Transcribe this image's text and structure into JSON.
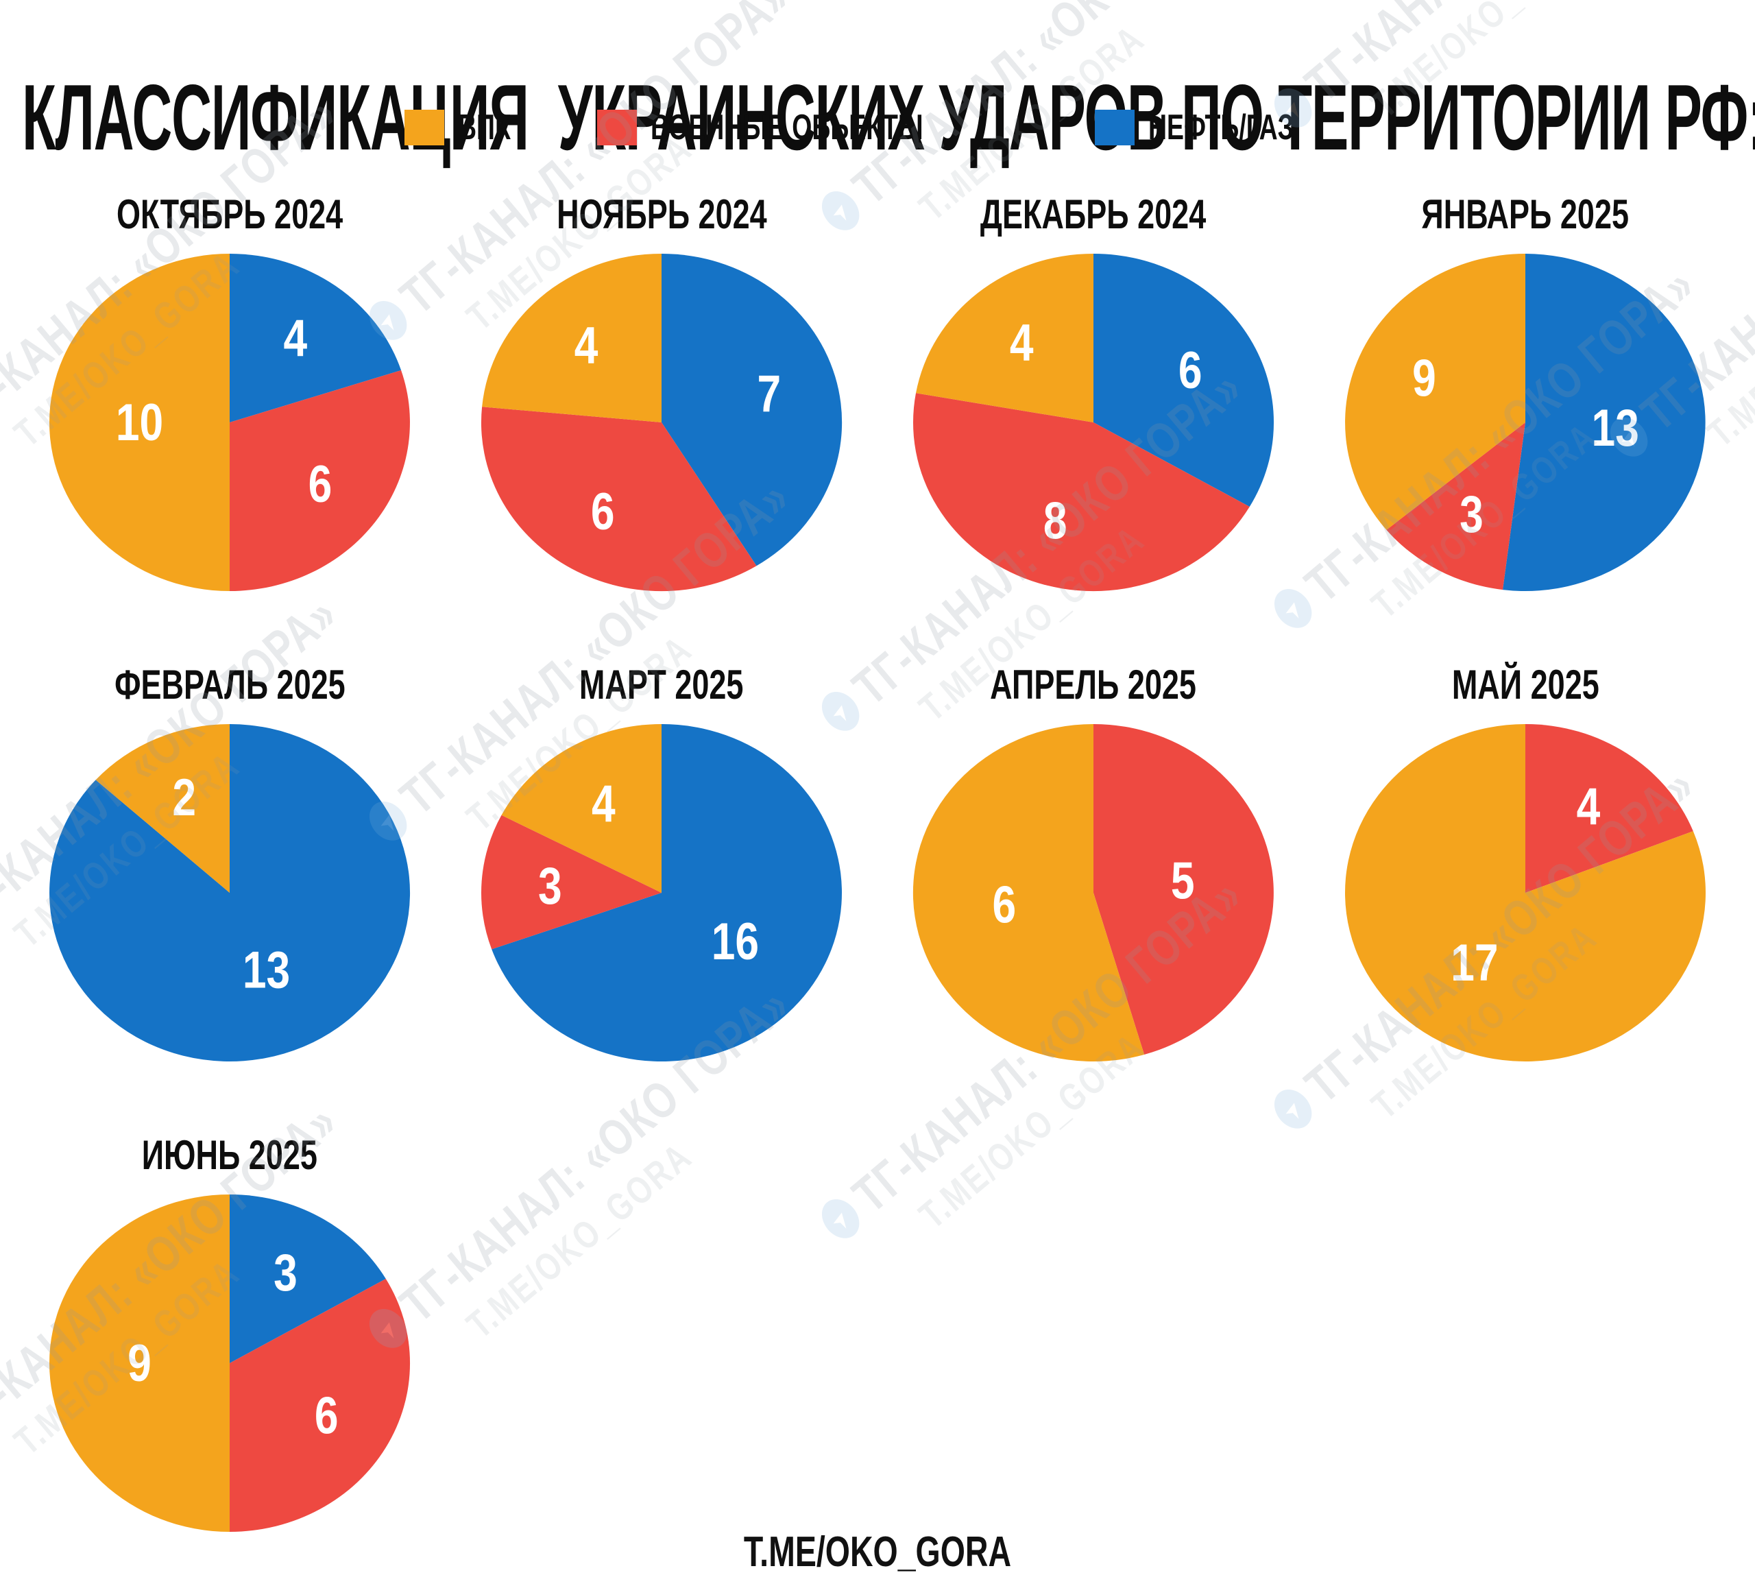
{
  "title": "КЛАССИФИКАЦИЯ  УКРАИНСКИХ УДАРОВ ПО ТЕРРИТОРИИ РФ:",
  "footer": "T.ME/OKO_GORA",
  "colors": {
    "vpk": "#F4A41D",
    "military_objects": "#EE4941",
    "oil_gas": "#1573C6"
  },
  "legend": {
    "items": [
      {
        "key": "vpk",
        "label": "ВПК"
      },
      {
        "key": "military_objects",
        "label": "ВОЕННЫЕ ОБЬЕКТЫ"
      },
      {
        "key": "oil_gas",
        "label": "НЕФТЬ/ГАЗ"
      }
    ]
  },
  "watermark": {
    "line1": "ТГ-КАНАЛ: «ОКО ГОРА»",
    "line2": "T.ME/OKO_GORA",
    "telegram_icon": "➤"
  },
  "chart_data": [
    {
      "type": "pie",
      "title": "ОКТЯБРЬ 2024",
      "start": "12-oclock",
      "direction": "clockwise",
      "slices": [
        {
          "key": "oil_gas",
          "category": "НЕФТЬ/ГАЗ",
          "value": 4
        },
        {
          "key": "military_objects",
          "category": "ВОЕННЫЕ ОБЬЕКТЫ",
          "value": 6
        },
        {
          "key": "vpk",
          "category": "ВПК",
          "value": 10
        }
      ]
    },
    {
      "type": "pie",
      "title": "НОЯБРЬ 2024",
      "start": "12-oclock",
      "direction": "clockwise",
      "slices": [
        {
          "key": "oil_gas",
          "category": "НЕФТЬ/ГАЗ",
          "value": 7
        },
        {
          "key": "military_objects",
          "category": "ВОЕННЫЕ ОБЬЕКТЫ",
          "value": 6
        },
        {
          "key": "vpk",
          "category": "ВПК",
          "value": 4
        }
      ]
    },
    {
      "type": "pie",
      "title": "ДЕКАБРЬ 2024",
      "start": "12-oclock",
      "direction": "clockwise",
      "slices": [
        {
          "key": "oil_gas",
          "category": "НЕФТЬ/ГАЗ",
          "value": 6
        },
        {
          "key": "military_objects",
          "category": "ВОЕННЫЕ ОБЬЕКТЫ",
          "value": 8
        },
        {
          "key": "vpk",
          "category": "ВПК",
          "value": 4
        }
      ]
    },
    {
      "type": "pie",
      "title": "ЯНВАРЬ 2025",
      "start": "12-oclock",
      "direction": "clockwise",
      "slices": [
        {
          "key": "oil_gas",
          "category": "НЕФТЬ/ГАЗ",
          "value": 13
        },
        {
          "key": "military_objects",
          "category": "ВОЕННЫЕ ОБЬЕКТЫ",
          "value": 3
        },
        {
          "key": "vpk",
          "category": "ВПК",
          "value": 9
        }
      ]
    },
    {
      "type": "pie",
      "title": "ФЕВРАЛЬ 2025",
      "start": "12-oclock",
      "direction": "clockwise",
      "slices": [
        {
          "key": "oil_gas",
          "category": "НЕФТЬ/ГАЗ",
          "value": 13
        },
        {
          "key": "vpk",
          "category": "ВПК",
          "value": 2
        }
      ]
    },
    {
      "type": "pie",
      "title": "МАРТ 2025",
      "start": "12-oclock",
      "direction": "clockwise",
      "slices": [
        {
          "key": "oil_gas",
          "category": "НЕФТЬ/ГАЗ",
          "value": 16
        },
        {
          "key": "military_objects",
          "category": "ВОЕННЫЕ ОБЬЕКТЫ",
          "value": 3
        },
        {
          "key": "vpk",
          "category": "ВПК",
          "value": 4
        }
      ]
    },
    {
      "type": "pie",
      "title": "АПРЕЛЬ 2025",
      "start": "12-oclock",
      "direction": "clockwise",
      "slices": [
        {
          "key": "military_objects",
          "category": "ВОЕННЫЕ ОБЬЕКТЫ",
          "value": 5
        },
        {
          "key": "vpk",
          "category": "ВПК",
          "value": 6
        }
      ]
    },
    {
      "type": "pie",
      "title": "МАЙ 2025",
      "start": "12-oclock",
      "direction": "clockwise",
      "slices": [
        {
          "key": "military_objects",
          "category": "ВОЕННЫЕ ОБЬЕКТЫ",
          "value": 4
        },
        {
          "key": "vpk",
          "category": "ВПК",
          "value": 17
        }
      ]
    },
    {
      "type": "pie",
      "title": "ИЮНЬ 2025",
      "start": "12-oclock",
      "direction": "clockwise",
      "slices": [
        {
          "key": "oil_gas",
          "category": "НЕФТЬ/ГАЗ",
          "value": 3
        },
        {
          "key": "military_objects",
          "category": "ВОЕННЫЕ ОБЬЕКТЫ",
          "value": 6
        },
        {
          "key": "vpk",
          "category": "ВПК",
          "value": 9
        }
      ]
    }
  ]
}
